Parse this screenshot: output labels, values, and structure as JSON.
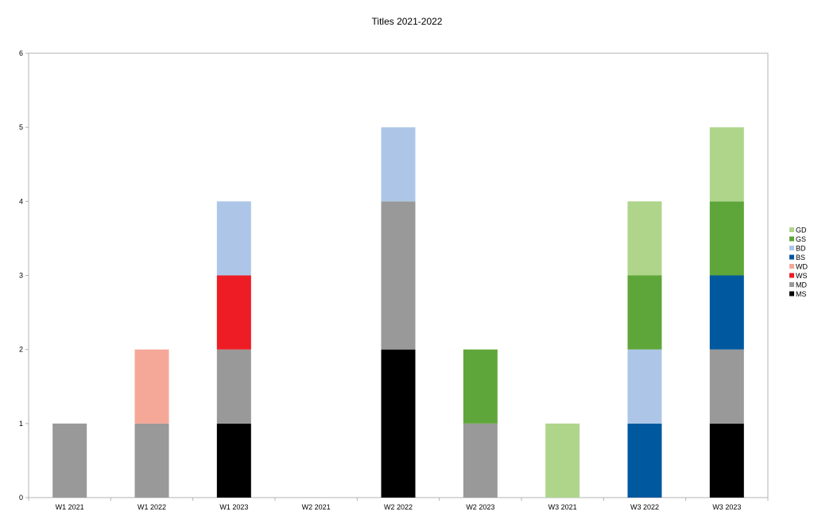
{
  "chart_data": {
    "type": "bar",
    "stacked": true,
    "title": "Titles 2021-2022",
    "xlabel": "",
    "ylabel": "",
    "ylim": [
      0,
      6
    ],
    "yticks": [
      "0",
      "1",
      "2",
      "3",
      "4",
      "5",
      "6"
    ],
    "grid": false,
    "legend_position": "right",
    "categories": [
      "W1  2021",
      "W1 2022",
      "W1  2023",
      "W2  2021",
      "W2  2022",
      "W2  2023",
      "W3  2021",
      "W3 2022",
      "W3 2023"
    ],
    "series": [
      {
        "name": "MS",
        "color": "#000000",
        "values": [
          0,
          0,
          1,
          0,
          2,
          0,
          0,
          0,
          1
        ]
      },
      {
        "name": "MD",
        "color": "#999999",
        "values": [
          1,
          1,
          1,
          0,
          2,
          1,
          0,
          0,
          1
        ]
      },
      {
        "name": "WS",
        "color": "#ee1c25",
        "values": [
          0,
          0,
          1,
          0,
          0,
          0,
          0,
          0,
          0
        ]
      },
      {
        "name": "WD",
        "color": "#f5a897",
        "values": [
          0,
          1,
          0,
          0,
          0,
          0,
          0,
          0,
          0
        ]
      },
      {
        "name": "BS",
        "color": "#00589e",
        "values": [
          0,
          0,
          0,
          0,
          0,
          0,
          0,
          1,
          1
        ]
      },
      {
        "name": "BD",
        "color": "#adc6e8",
        "values": [
          0,
          0,
          1,
          0,
          1,
          0,
          0,
          1,
          0
        ]
      },
      {
        "name": "GS",
        "color": "#5fa63a",
        "values": [
          0,
          0,
          0,
          0,
          0,
          1,
          0,
          1,
          1
        ]
      },
      {
        "name": "GD",
        "color": "#afd58b",
        "values": [
          0,
          0,
          0,
          0,
          0,
          0,
          1,
          1,
          1
        ]
      }
    ],
    "legend_order": [
      "GD",
      "GS",
      "BD",
      "BS",
      "WD",
      "WS",
      "MD",
      "MS"
    ]
  }
}
